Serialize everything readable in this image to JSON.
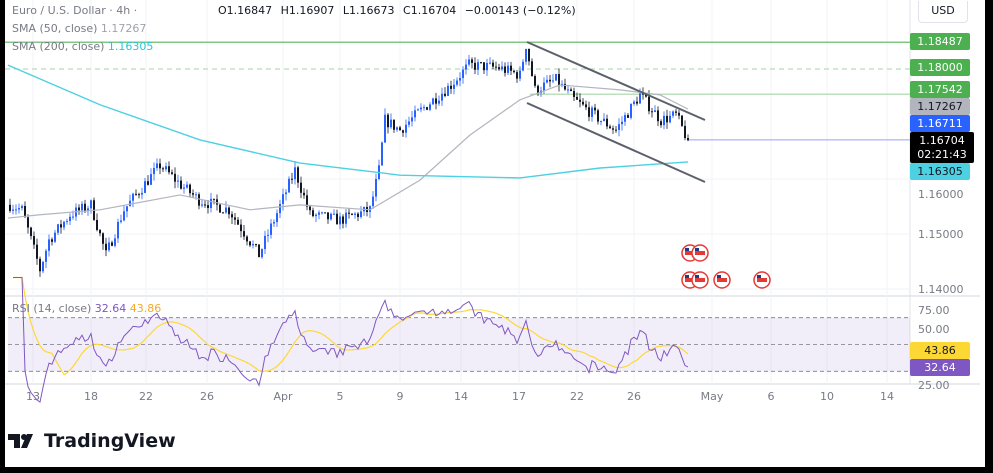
{
  "header": {
    "symbol": "Euro / U.S. Dollar · 4h ·",
    "open": "O1.16847",
    "high": "H1.16907",
    "low": "L1.16673",
    "close": "C1.16704",
    "change": "−0.00143 (−0.12%)"
  },
  "indicators": {
    "sma50_label": "SMA (50, close)",
    "sma50_value": "1.17267",
    "sma200_label": "SMA (200, close)",
    "sma200_value": "1.16305",
    "rsi_label": "RSI (14, close)",
    "rsi_value": "32.64",
    "rsi_ma_value": "43.86"
  },
  "currency": "USD",
  "price_labels": [
    {
      "value": "1.18487",
      "color": "#4caf50"
    },
    {
      "value": "1.18000",
      "color": "#4caf50"
    },
    {
      "value": "1.17542",
      "color": "#4caf50"
    },
    {
      "value": "1.17267",
      "color": "#b2b5be"
    },
    {
      "value": "1.16711",
      "color": "#2962ff"
    },
    {
      "value": "1.16704",
      "color": "#000000",
      "countdown": "02:21:43"
    },
    {
      "value": "1.16305",
      "color": "#4dd0e1"
    }
  ],
  "chart_data": {
    "type": "candlestick",
    "price_ticks": [
      "1.16000",
      "1.15000",
      "1.14000"
    ],
    "rsi_ticks": [
      "75.00",
      "50.00",
      "25.00"
    ],
    "x_ticks": [
      "13",
      "18",
      "22",
      "26",
      "Apr",
      "5",
      "9",
      "14",
      "17",
      "22",
      "26",
      "May",
      "6",
      "10",
      "14"
    ],
    "close_path": [
      [
        0,
        1.1553
      ],
      [
        4,
        1.1544
      ],
      [
        10,
        1.1435
      ],
      [
        13,
        1.1489
      ],
      [
        20,
        1.1535
      ],
      [
        27,
        1.1553
      ],
      [
        32,
        1.1462
      ],
      [
        38,
        1.1544
      ],
      [
        50,
        1.1625
      ],
      [
        57,
        1.1589
      ],
      [
        63,
        1.1562
      ],
      [
        73,
        1.1544
      ],
      [
        83,
        1.1462
      ],
      [
        88,
        1.1525
      ],
      [
        95,
        1.1616
      ],
      [
        100,
        1.1535
      ],
      [
        110,
        1.1525
      ],
      [
        120,
        1.1544
      ],
      [
        123,
        1.1616
      ],
      [
        125,
        1.1707
      ],
      [
        130,
        1.1689
      ],
      [
        137,
        1.1725
      ],
      [
        147,
        1.1771
      ],
      [
        153,
        1.1807
      ],
      [
        163,
        1.1802
      ],
      [
        170,
        1.1789
      ],
      [
        172,
        1.1844
      ],
      [
        175,
        1.1762
      ],
      [
        182,
        1.178
      ],
      [
        188,
        1.1744
      ],
      [
        197,
        1.1707
      ],
      [
        202,
        1.1689
      ],
      [
        210,
        1.1753
      ],
      [
        217,
        1.1707
      ],
      [
        222,
        1.1716
      ],
      [
        226,
        1.167
      ]
    ],
    "levels": {
      "resistance_1": 1.18487,
      "resistance_2": 1.18,
      "resistance_3": 1.17542,
      "bid": 1.16711
    },
    "colors": {
      "up": "#2962ff",
      "down": "#131722",
      "sma50": "#b2b5be",
      "sma200": "#4dd0e1",
      "rsi": "#7e57c2",
      "rsi_ma": "#fdd835"
    }
  },
  "branding": {
    "logo_text": "TradingView"
  }
}
